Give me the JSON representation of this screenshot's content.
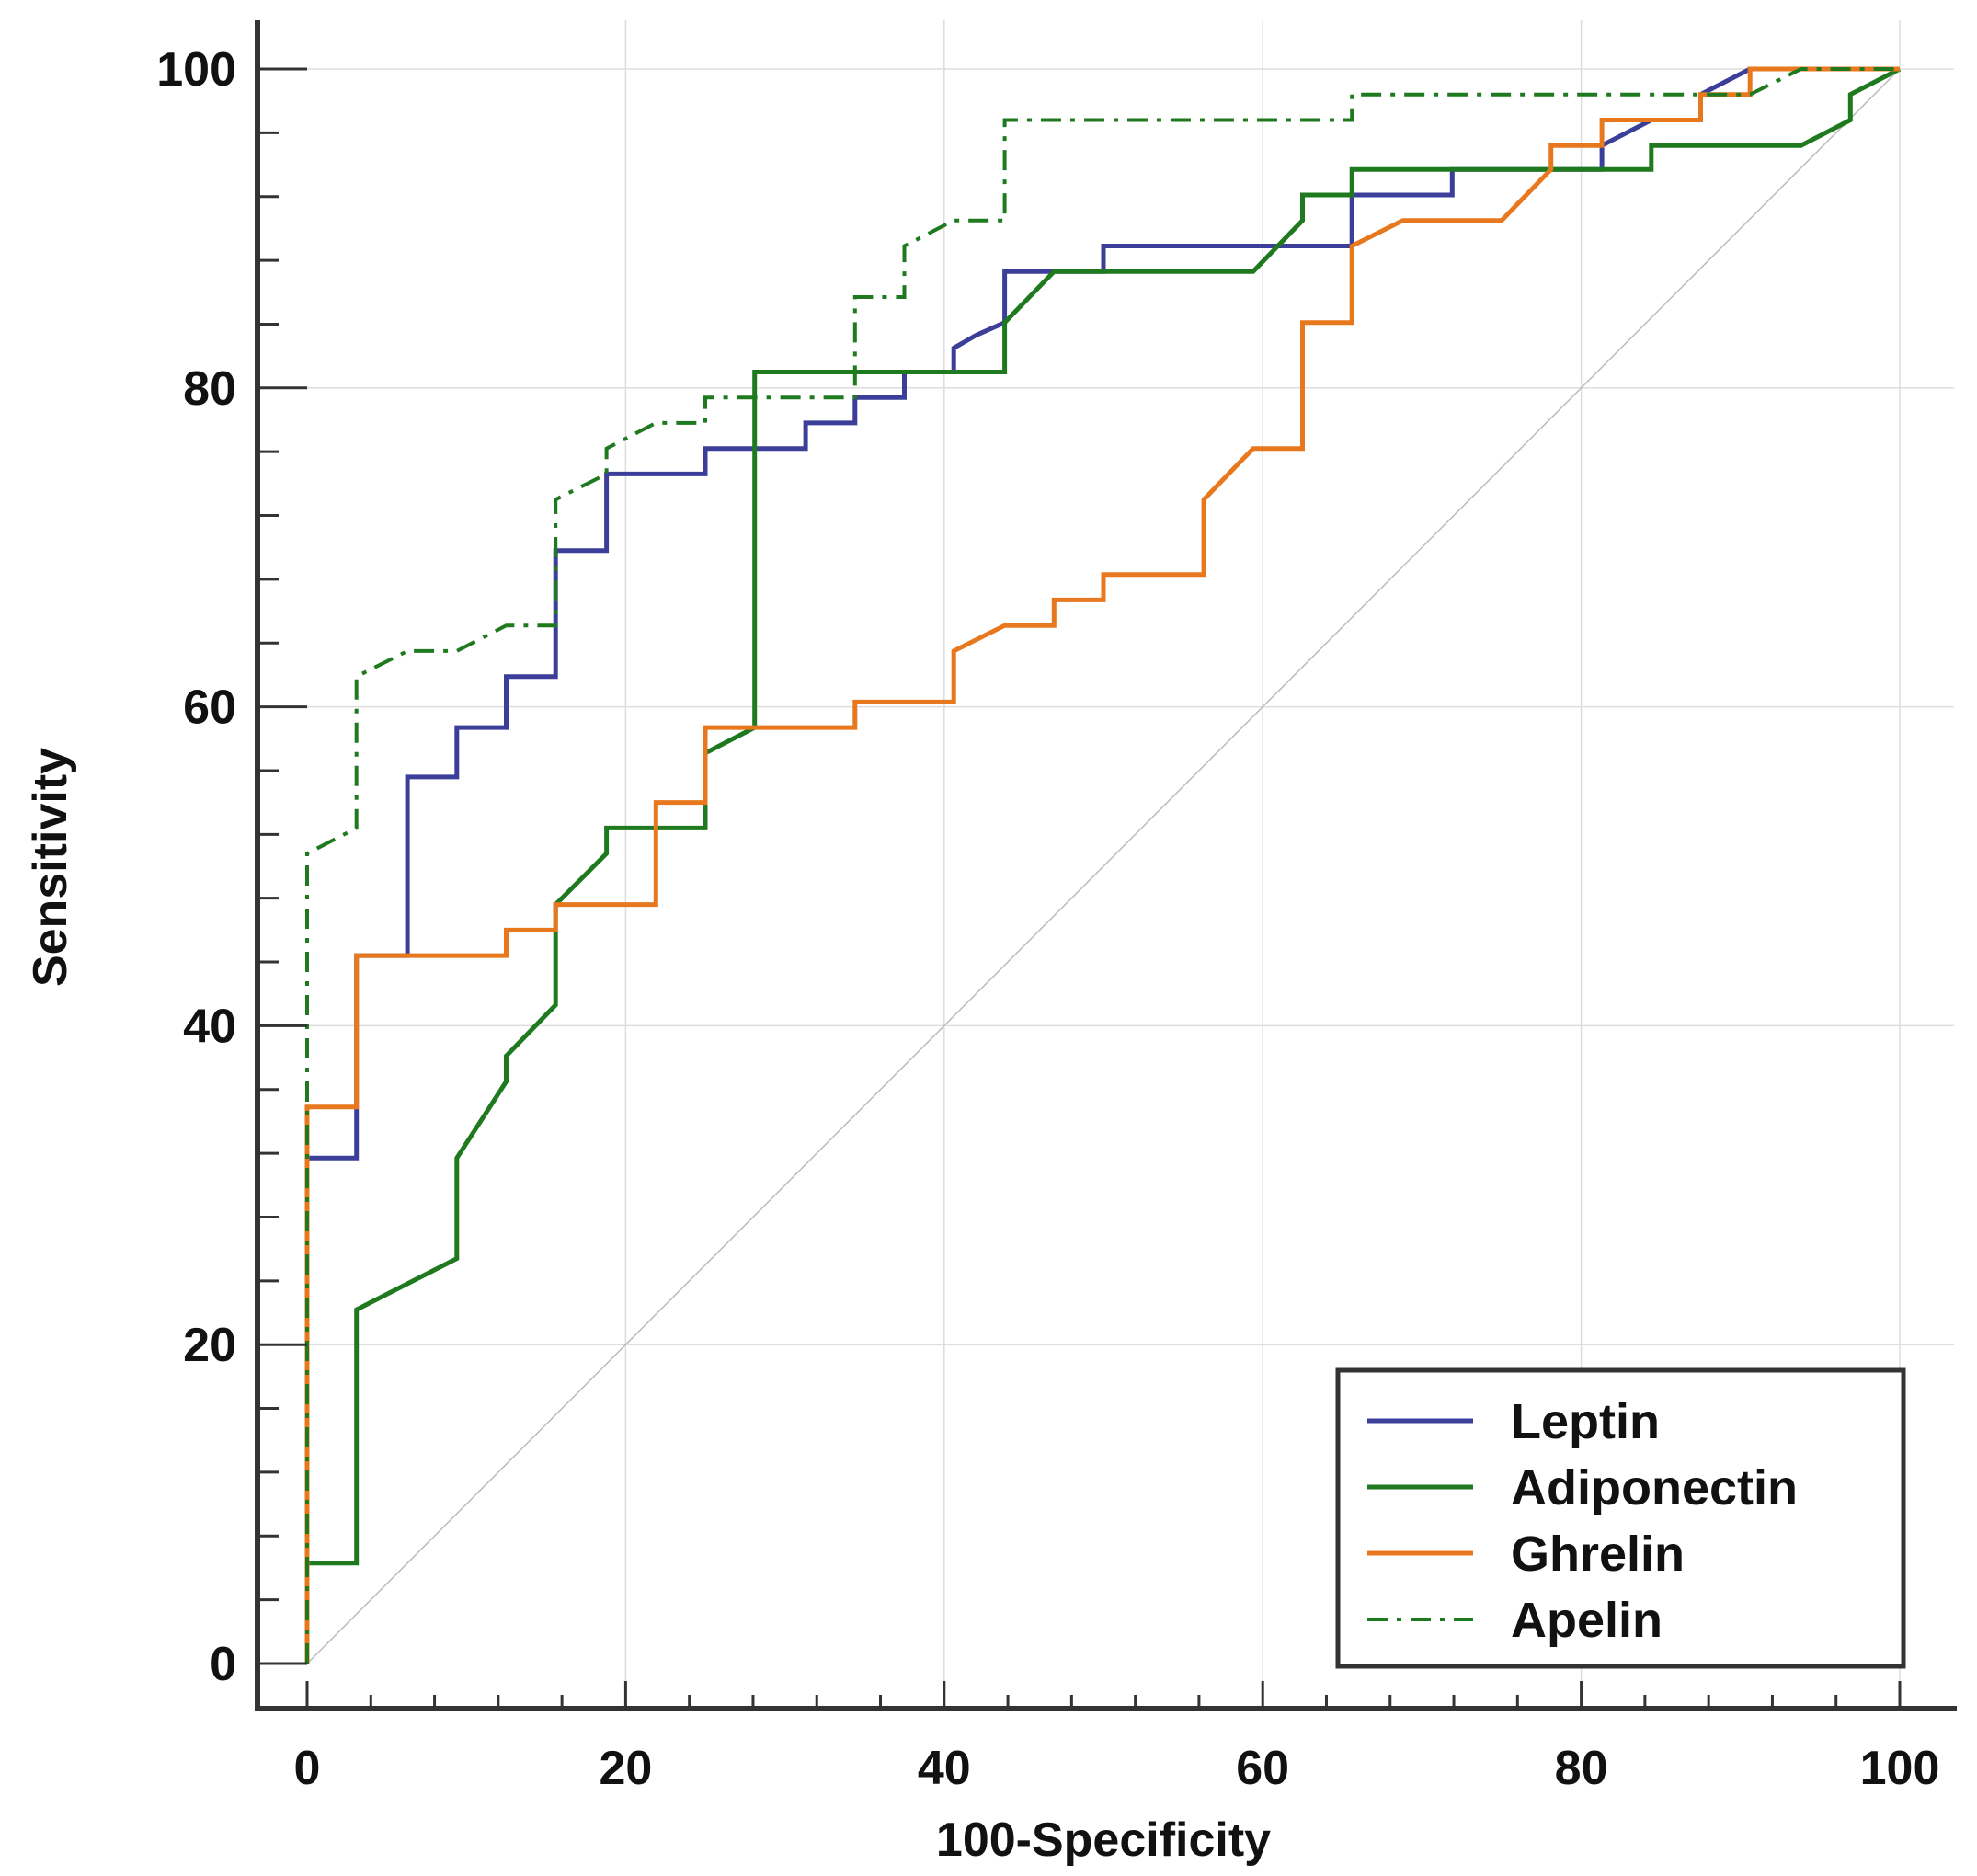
{
  "chart_data": {
    "type": "line",
    "title": "",
    "xlabel": "100-Specificity",
    "ylabel": "Sensitivity",
    "xlim": [
      0,
      100
    ],
    "ylim": [
      0,
      100
    ],
    "xticks": [
      "0",
      "20",
      "40",
      "60",
      "80",
      "100"
    ],
    "yticks": [
      "0",
      "20",
      "40",
      "60",
      "80",
      "100"
    ],
    "grid": true,
    "reference_line": {
      "from": [
        0,
        0
      ],
      "to": [
        100,
        100
      ],
      "color": "#bbbbbb"
    },
    "legend": {
      "position": "bottom-right",
      "entries": [
        "Leptin",
        "Adiponectin",
        "Ghrelin",
        "Apelin"
      ]
    },
    "series": [
      {
        "name": "Leptin",
        "color": "#3b3f99",
        "style": "solid",
        "points": [
          [
            0,
            0
          ],
          [
            0,
            31.7
          ],
          [
            3.1,
            31.7
          ],
          [
            3.1,
            34.9
          ],
          [
            3.1,
            44.4
          ],
          [
            6.3,
            44.4
          ],
          [
            6.3,
            55.6
          ],
          [
            9.4,
            55.6
          ],
          [
            9.4,
            58.7
          ],
          [
            12.5,
            58.7
          ],
          [
            12.5,
            61.9
          ],
          [
            15.6,
            61.9
          ],
          [
            15.6,
            69.8
          ],
          [
            18.8,
            69.8
          ],
          [
            18.8,
            74.6
          ],
          [
            25,
            74.6
          ],
          [
            25,
            76.2
          ],
          [
            31.3,
            76.2
          ],
          [
            31.3,
            77.8
          ],
          [
            34.4,
            77.8
          ],
          [
            34.4,
            79.4
          ],
          [
            37.5,
            79.4
          ],
          [
            37.5,
            81
          ],
          [
            40.6,
            81
          ],
          [
            40.6,
            82.5
          ],
          [
            42,
            83.3
          ],
          [
            43.8,
            84.1
          ],
          [
            43.8,
            87.3
          ],
          [
            50,
            87.3
          ],
          [
            50,
            88.9
          ],
          [
            65.6,
            88.9
          ],
          [
            65.6,
            92.1
          ],
          [
            71.9,
            92.1
          ],
          [
            71.9,
            93.7
          ],
          [
            81.3,
            93.7
          ],
          [
            81.3,
            95.2
          ],
          [
            84.4,
            96.8
          ],
          [
            87.5,
            96.8
          ],
          [
            87.5,
            98.4
          ],
          [
            90.6,
            100
          ],
          [
            100,
            100
          ]
        ]
      },
      {
        "name": "Adiponectin",
        "color": "#1f7a1f",
        "style": "solid",
        "points": [
          [
            0,
            0
          ],
          [
            0,
            6.3
          ],
          [
            3.1,
            6.3
          ],
          [
            3.1,
            22.2
          ],
          [
            9.4,
            25.4
          ],
          [
            9.4,
            31.7
          ],
          [
            12.5,
            36.5
          ],
          [
            12.5,
            38.1
          ],
          [
            15.6,
            41.3
          ],
          [
            15.6,
            47.6
          ],
          [
            18.8,
            50.8
          ],
          [
            18.8,
            52.4
          ],
          [
            25,
            52.4
          ],
          [
            25,
            57.1
          ],
          [
            28.1,
            58.7
          ],
          [
            28.1,
            81
          ],
          [
            43.8,
            81
          ],
          [
            43.8,
            84.1
          ],
          [
            46.9,
            87.3
          ],
          [
            59.4,
            87.3
          ],
          [
            62.5,
            90.5
          ],
          [
            62.5,
            92.1
          ],
          [
            65.6,
            92.1
          ],
          [
            65.6,
            93.7
          ],
          [
            84.4,
            93.7
          ],
          [
            84.4,
            95.2
          ],
          [
            93.8,
            95.2
          ],
          [
            96.9,
            96.8
          ],
          [
            96.9,
            98.4
          ],
          [
            100,
            100
          ]
        ]
      },
      {
        "name": "Ghrelin",
        "color": "#e8781e",
        "style": "solid",
        "points": [
          [
            0,
            0
          ],
          [
            0,
            34.9
          ],
          [
            3.1,
            34.9
          ],
          [
            3.1,
            44.4
          ],
          [
            12.5,
            44.4
          ],
          [
            12.5,
            46
          ],
          [
            15.6,
            46
          ],
          [
            15.6,
            47.6
          ],
          [
            21.9,
            47.6
          ],
          [
            21.9,
            54
          ],
          [
            25,
            54
          ],
          [
            25,
            58.7
          ],
          [
            34.4,
            58.7
          ],
          [
            34.4,
            60.3
          ],
          [
            40.6,
            60.3
          ],
          [
            40.6,
            63.5
          ],
          [
            43.8,
            65.1
          ],
          [
            46.9,
            65.1
          ],
          [
            46.9,
            66.7
          ],
          [
            50,
            66.7
          ],
          [
            50,
            68.3
          ],
          [
            56.3,
            68.3
          ],
          [
            56.3,
            73
          ],
          [
            59.4,
            76.2
          ],
          [
            62.5,
            76.2
          ],
          [
            62.5,
            84.1
          ],
          [
            65.6,
            84.1
          ],
          [
            65.6,
            88.9
          ],
          [
            68.8,
            90.5
          ],
          [
            75,
            90.5
          ],
          [
            78.1,
            93.7
          ],
          [
            78.1,
            95.2
          ],
          [
            81.3,
            95.2
          ],
          [
            81.3,
            96.8
          ],
          [
            87.5,
            96.8
          ],
          [
            87.5,
            98.4
          ],
          [
            90.6,
            98.4
          ],
          [
            90.6,
            100
          ],
          [
            100,
            100
          ]
        ]
      },
      {
        "name": "Apelin",
        "color": "#1f7a1f",
        "style": "dashdot",
        "points": [
          [
            0,
            0
          ],
          [
            0,
            50.8
          ],
          [
            3.1,
            52.4
          ],
          [
            3.1,
            61.9
          ],
          [
            6.3,
            63.5
          ],
          [
            9.4,
            63.5
          ],
          [
            12.5,
            65.1
          ],
          [
            15.6,
            65.1
          ],
          [
            15.6,
            73
          ],
          [
            18.8,
            74.6
          ],
          [
            18.8,
            76.2
          ],
          [
            21.9,
            77.8
          ],
          [
            25,
            77.8
          ],
          [
            25,
            79.4
          ],
          [
            34.4,
            79.4
          ],
          [
            34.4,
            85.7
          ],
          [
            37.5,
            85.7
          ],
          [
            37.5,
            88.9
          ],
          [
            40.6,
            90.5
          ],
          [
            43.8,
            90.5
          ],
          [
            43.8,
            96.8
          ],
          [
            65.6,
            96.8
          ],
          [
            65.6,
            98.4
          ],
          [
            90.6,
            98.4
          ],
          [
            93.8,
            100
          ],
          [
            100,
            100
          ]
        ]
      }
    ]
  }
}
